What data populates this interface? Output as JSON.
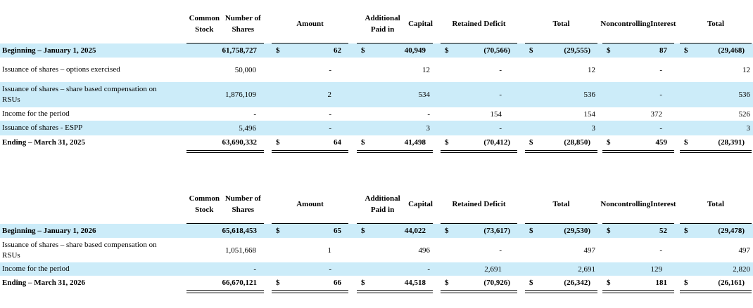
{
  "header": {
    "shares": [
      "Common Stock",
      "Number of Shares"
    ],
    "amount": "Amount",
    "apic": [
      "Additional Paid in",
      "Capital"
    ],
    "retained": "Retained Deficit",
    "total": "Total",
    "nci": [
      "Noncontrolling",
      "Interest"
    ],
    "total2": "Total"
  },
  "currency": "$",
  "table1": {
    "beginning": {
      "label": "Beginning – January 1, 2025",
      "shares": "61,758,727",
      "amount": "62",
      "apic": "40,949",
      "retained": "(70,566)",
      "total": "(29,555)",
      "nci": "87",
      "total2": "(29,468)"
    },
    "rows": [
      {
        "label": "Issuance of shares – options exercised",
        "shares": "50,000",
        "amount": "-",
        "apic": "12",
        "retained": "-",
        "total": "12",
        "nci": "-",
        "total2": "12"
      },
      {
        "label": "Issuance of shares – share based compensation on RSUs",
        "shares": "1,876,109",
        "amount": "2",
        "apic": "534",
        "retained": "-",
        "total": "536",
        "nci": "-",
        "total2": "536"
      },
      {
        "label": "Income for the period",
        "shares": "-",
        "amount": "-",
        "apic": "-",
        "retained": "154",
        "total": "154",
        "nci": "372",
        "total2": "526"
      },
      {
        "label": "Issuance of shares - ESPP",
        "shares": "5,496",
        "amount": "-",
        "apic": "3",
        "retained": "-",
        "total": "3",
        "nci": "-",
        "total2": "3"
      }
    ],
    "ending": {
      "label": "Ending – March 31, 2025",
      "shares": "63,690,332",
      "amount": "64",
      "apic": "41,498",
      "retained": "(70,412)",
      "total": "(28,850)",
      "nci": "459",
      "total2": "(28,391)"
    }
  },
  "table2": {
    "beginning": {
      "label": "Beginning – January 1, 2026",
      "shares": "65,618,453",
      "amount": "65",
      "apic": "44,022",
      "retained": "(73,617)",
      "total": "(29,530)",
      "nci": "52",
      "total2": "(29,478)"
    },
    "rows": [
      {
        "label": "Issuance of shares – share based compensation on RSUs",
        "shares": "1,051,668",
        "amount": "1",
        "apic": "496",
        "retained": "-",
        "total": "497",
        "nci": "-",
        "total2": "497"
      },
      {
        "label": "Income for the period",
        "shares": "-",
        "amount": "-",
        "apic": "-",
        "retained": "2,691",
        "total": "2,691",
        "nci": "129",
        "total2": "2,820"
      }
    ],
    "ending": {
      "label": "Ending – March 31, 2026",
      "shares": "66,670,121",
      "amount": "66",
      "apic": "44,518",
      "retained": "(70,926)",
      "total": "(26,342)",
      "nci": "181",
      "total2": "(26,161)"
    }
  }
}
